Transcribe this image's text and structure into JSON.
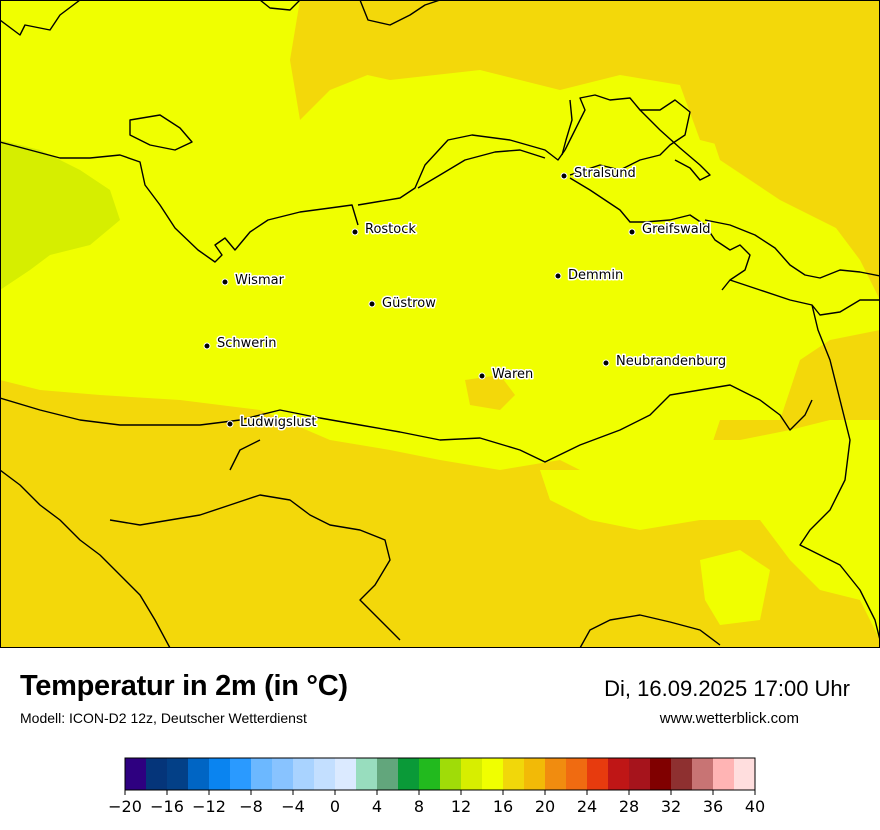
{
  "map": {
    "cities": [
      {
        "name": "Stralsund"
      },
      {
        "name": "Rostock"
      },
      {
        "name": "Greifswald"
      },
      {
        "name": "Wismar"
      },
      {
        "name": "Demmin"
      },
      {
        "name": "Güstrow"
      },
      {
        "name": "Schwerin"
      },
      {
        "name": "Neubrandenburg"
      },
      {
        "name": "Waren"
      },
      {
        "name": "Ludwigslust"
      }
    ],
    "colors": {
      "yellow_16": "#f0ff00",
      "yellow_18": "#f3d80a",
      "lime_14": "#d6ee00"
    }
  },
  "footer": {
    "title": "Temperatur in 2m (in °C)",
    "model": "Modell: ICON-D2 12z, Deutscher Wetterdienst",
    "datetime": "Di, 16.09.2025 17:00 Uhr",
    "site": "www.wetterblick.com"
  },
  "legend": {
    "ticks": [
      "−20",
      "−16",
      "−12",
      "−8",
      "−4",
      "0",
      "4",
      "8",
      "12",
      "16",
      "20",
      "24",
      "28",
      "32",
      "36",
      "40"
    ],
    "colors": [
      "#2e0080",
      "#05357a",
      "#034087",
      "#0065c4",
      "#0a84f0",
      "#2a9aff",
      "#6cb8ff",
      "#88c3ff",
      "#a9d3ff",
      "#c3dfff",
      "#dbeaff",
      "#98ddbe",
      "#62a67c",
      "#0a9a38",
      "#22ba1e",
      "#a0dc08",
      "#d7ee00",
      "#f0ff00",
      "#f1d70a",
      "#f2ba07",
      "#f18c0f",
      "#f06b11",
      "#e73b0e",
      "#bf1616",
      "#a6141c",
      "#800000",
      "#8e3030",
      "#c87474",
      "#ffb4b4",
      "#ffdede"
    ]
  }
}
